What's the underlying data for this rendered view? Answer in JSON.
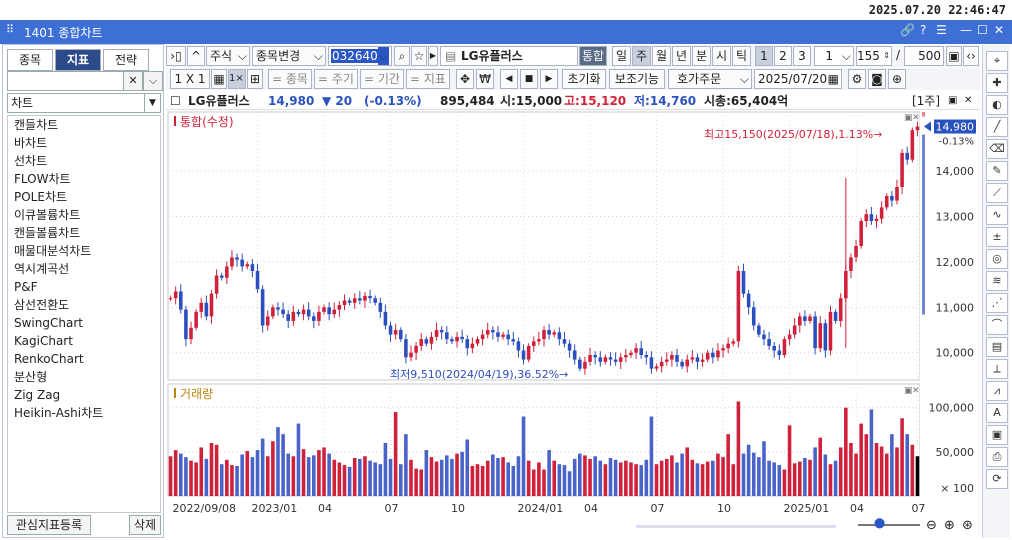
{
  "datetime": "2025.07.20 22:46:47",
  "window": {
    "number": "1401",
    "title": "1401 종합차트"
  },
  "left": {
    "tabs": [
      "종목",
      "지표",
      "전략"
    ],
    "active_tab": 1,
    "search_value": "",
    "category": "차트",
    "items": [
      "캔들차트",
      "바차트",
      "선차트",
      "FLOW차트",
      "POLE차트",
      "이큐볼륨차트",
      "캔들볼륨차트",
      "매물대분석차트",
      "역시계곡선",
      "P&F",
      "삼선전환도",
      "SwingChart",
      "KagiChart",
      "RenkoChart",
      "분산형",
      "Zig Zag",
      "Heikin-Ashi차트"
    ],
    "register_btn": "관심지표등록",
    "delete_btn": "삭제"
  },
  "toolbar": {
    "stock_type": "주식",
    "change_btn": "종목변경",
    "code": "032640",
    "stock_name": "LG유플러스",
    "integrated": "통합",
    "periods": [
      "일",
      "주",
      "월",
      "년",
      "분",
      "시",
      "틱"
    ],
    "active_period": "주",
    "nums": [
      "1",
      "2",
      "3"
    ],
    "count": "1",
    "bars": "155",
    "max": "500",
    "layout": "1 X 1",
    "toggles": [
      "종목",
      "주기",
      "기간",
      "지표"
    ],
    "reset": "초기화",
    "aux": "보조기능",
    "order": "호가주문",
    "date": "2025/07/20"
  },
  "info": {
    "name": "LG유플러스",
    "price": "14,980",
    "change": "▼ 20",
    "pct": "(-0.13%)",
    "volume": "895,484",
    "open": "시:15,000",
    "high": "고:15,120",
    "low": "저:14,760",
    "cap": "시총:65,404억",
    "period": "[1주]"
  },
  "chart_data": {
    "type": "candlestick",
    "title": "통합(수정)",
    "volume_title": "거래량",
    "price_ticks": [
      "14,000",
      "13,000",
      "12,000",
      "11,000",
      "10,000"
    ],
    "volume_ticks": [
      "100,000",
      "50,000",
      "× 100"
    ],
    "current_label": "14,980",
    "current_pct": "-0.13%",
    "high_note": "최고15,150(2025/07/18),1.13%→",
    "low_note": "최저9,510(2024/04/19),36.52%→",
    "x_labels": [
      "2022/09/08",
      "2023/01",
      "04",
      "07",
      "10",
      "2024/01",
      "04",
      "07",
      "10",
      "2025/01",
      "04",
      "07"
    ],
    "ylim": [
      9400,
      15300
    ],
    "vol_max": 120000,
    "closes": [
      11200,
      11350,
      10950,
      10300,
      10550,
      10900,
      11100,
      10800,
      11300,
      11700,
      11650,
      11900,
      12100,
      12050,
      11900,
      11950,
      11800,
      11400,
      10600,
      10800,
      11000,
      10950,
      10850,
      10700,
      10900,
      10850,
      10950,
      10800,
      10700,
      10900,
      11000,
      10850,
      10950,
      11050,
      11150,
      11100,
      11200,
      11150,
      11250,
      11200,
      11100,
      10900,
      10600,
      10400,
      10500,
      10300,
      9900,
      10000,
      10150,
      10300,
      10200,
      10350,
      10500,
      10450,
      10300,
      10250,
      10350,
      10300,
      10100,
      10200,
      10300,
      10400,
      10500,
      10450,
      10350,
      10400,
      10300,
      10250,
      10050,
      9850,
      10150,
      10250,
      10300,
      10500,
      10400,
      10450,
      10300,
      10200,
      10050,
      9850,
      9650,
      9800,
      9950,
      9900,
      9800,
      9900,
      9850,
      9800,
      9900,
      9950,
      10000,
      10100,
      9950,
      9900,
      9650,
      9700,
      9800,
      9850,
      9950,
      9800,
      9700,
      9850,
      9900,
      9800,
      9850,
      10000,
      9900,
      10050,
      10100,
      10200,
      10250,
      11800,
      11300,
      11000,
      10600,
      10400,
      10300,
      10150,
      10050,
      9950,
      10300,
      10400,
      10600,
      10800,
      10700,
      10800,
      10100,
      10650,
      10050,
      10900,
      10700,
      11200,
      11800,
      12100,
      12350,
      12900,
      13050,
      12900,
      12950,
      13200,
      13450,
      13350,
      13650,
      14400,
      14250,
      14900,
      14980
    ],
    "volumes": [
      45000,
      52000,
      48000,
      44000,
      40000,
      38000,
      55000,
      42000,
      60000,
      58000,
      36000,
      41000,
      35000,
      34000,
      47000,
      51000,
      44000,
      52000,
      65000,
      45000,
      62000,
      78000,
      70000,
      48000,
      45000,
      82000,
      53000,
      44000,
      46000,
      52000,
      55000,
      48000,
      41000,
      38000,
      35000,
      33000,
      43000,
      42000,
      45000,
      40000,
      38000,
      36000,
      60000,
      42000,
      95000,
      36000,
      70000,
      41000,
      31000,
      30000,
      52000,
      44000,
      39000,
      41000,
      46000,
      42000,
      48000,
      50000,
      64000,
      34000,
      36000,
      34000,
      40000,
      47000,
      43000,
      44000,
      38000,
      34000,
      45000,
      90000,
      40000,
      30000,
      38000,
      30000,
      52000,
      40000,
      36000,
      35000,
      28000,
      42000,
      48000,
      46000,
      42000,
      45000,
      40000,
      36000,
      43000,
      41000,
      38000,
      40000,
      38000,
      36000,
      35000,
      41000,
      90000,
      36000,
      40000,
      42000,
      46000,
      38000,
      48000,
      55000,
      41000,
      37000,
      36000,
      39000,
      40000,
      48000,
      44000,
      70000,
      36000,
      107000,
      48000,
      58000,
      49000,
      44000,
      62000,
      40000,
      38000,
      35000,
      30000,
      80000,
      37000,
      39000,
      43000,
      41000,
      55000,
      66000,
      47000,
      36000,
      40000,
      55000,
      100000,
      60000,
      48000,
      82000,
      70000,
      98000,
      60000,
      56000,
      48000,
      70000,
      55000,
      88000,
      70000,
      58000,
      45000
    ]
  }
}
